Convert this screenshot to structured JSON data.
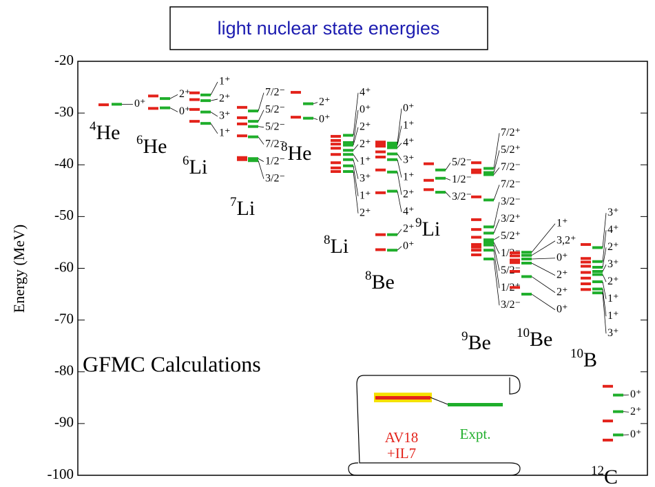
{
  "title": "light nuclear state energies",
  "chart_data": {
    "type": "level",
    "ylabel": "Energy (MeV)",
    "annotation": "GFMC Calculations",
    "ylim": [
      -100,
      -20
    ],
    "yticks": [
      -100,
      -90,
      -80,
      -70,
      -60,
      -50,
      -40,
      -30,
      -20
    ],
    "calc_color": "#e3231b",
    "expt_color": "#1fae2b",
    "legend": {
      "calc_name": [
        "AV18",
        "+IL7"
      ],
      "expt_name": "Expt."
    },
    "nuclei": [
      {
        "mass": "4",
        "symbol": "He",
        "calc": [
          -28.4
        ],
        "expt": [
          -28.3
        ],
        "labels": [
          "0⁺"
        ]
      },
      {
        "mass": "6",
        "symbol": "He",
        "calc": [
          -26.7,
          -29.1
        ],
        "expt": [
          -27.2,
          -29.0
        ],
        "labels": [
          "2⁺",
          "0⁺"
        ]
      },
      {
        "mass": "6",
        "symbol": "Li",
        "calc": [
          -26.1,
          -27.4,
          -29.3,
          -31.6
        ],
        "expt": [
          -26.5,
          -27.6,
          -29.8,
          -32.0
        ],
        "labels": [
          "1⁺",
          "2⁺",
          "3⁺",
          "1⁺"
        ]
      },
      {
        "mass": "7",
        "symbol": "Li",
        "calc": [
          -28.9,
          -30.9,
          -32.1,
          -34.4,
          -38.6,
          -39.0
        ],
        "expt": [
          -29.6,
          -31.6,
          -32.6,
          -34.6,
          -38.8,
          -39.2
        ],
        "labels": [
          "7/2⁻",
          "5/2⁻",
          "5/2⁻",
          "7/2⁻",
          "1/2⁻",
          "3/2⁻"
        ]
      },
      {
        "mass": "8",
        "symbol": "He",
        "calc": [
          -26.0,
          -30.8
        ],
        "expt": [
          -28.2,
          -31.0
        ],
        "labels": [
          "2⁺",
          "0⁺"
        ]
      },
      {
        "mass": "8",
        "symbol": "Li",
        "calc": [
          -34.5,
          -35.3,
          -36.0,
          -36.8,
          -38.0,
          -39.6,
          -40.6,
          -41.3
        ],
        "expt": [
          -34.3,
          -35.7,
          -36.2,
          -37.2,
          -38.0,
          -39.0,
          -40.2,
          -41.3
        ],
        "labels": [
          "4⁺",
          "0⁺",
          "2⁺",
          "2⁺",
          "1⁺",
          "3⁺",
          "1⁺",
          "2⁺"
        ]
      },
      {
        "mass": "8",
        "symbol": "Be",
        "calc": [
          -35.6,
          -36.0,
          -36.4,
          -37.5,
          -38.5,
          -41.0,
          -45.4,
          -53.5,
          -56.4
        ],
        "expt": [
          -35.8,
          -36.2,
          -36.7,
          -37.9,
          -39.0,
          -41.4,
          -45.1,
          -53.5,
          -56.5
        ],
        "labels": [
          "0⁺",
          "1⁺",
          "4⁺",
          "3⁺",
          "1⁺",
          "2⁺",
          "4⁺",
          "2⁺",
          "0⁺"
        ]
      },
      {
        "mass": "9",
        "symbol": "Li",
        "calc": [
          -39.8,
          -43.0,
          -44.8
        ],
        "expt": [
          -41.0,
          -42.6,
          -45.3
        ],
        "labels": [
          "5/2⁻",
          "1/2⁻",
          "3/2⁻"
        ]
      },
      {
        "mass": "9",
        "symbol": "Be",
        "calc": [
          -39.6,
          -41.0,
          -41.5,
          -46.2,
          -50.6,
          -52.5,
          -54.0,
          -55.4,
          -55.9,
          -56.5,
          -57.4
        ],
        "expt": [
          -40.7,
          -41.5,
          -41.9,
          -46.8,
          -52.0,
          -53.2,
          -54.5,
          -55.0,
          -55.5,
          -56.5,
          -58.2
        ],
        "labels": [
          "7/2⁺",
          "5/2⁺",
          "7/2⁻",
          "7/2⁻",
          "3/2⁻",
          "3/2⁺",
          "5/2⁺",
          "1/2⁻",
          "5/2⁻",
          "1/2⁺",
          "3/2⁻"
        ]
      },
      {
        "mass": "10",
        "symbol": "Be",
        "calc": [
          -57.0,
          -57.6,
          -58.4,
          -58.9,
          -60.6,
          -63.7
        ],
        "expt": [
          -56.9,
          -57.5,
          -58.2,
          -59.0,
          -61.6,
          -65.0
        ],
        "labels": [
          "1⁺",
          "3,2⁺",
          "0⁺",
          "2⁺",
          "2⁺",
          "0⁺"
        ]
      },
      {
        "mass": "10",
        "symbol": "B",
        "calc": [
          -55.4,
          -58.1,
          -58.8,
          -59.6,
          -60.8,
          -61.9,
          -63.0,
          -64.1
        ],
        "expt": [
          -56.0,
          -58.7,
          -59.8,
          -60.6,
          -61.2,
          -62.6,
          -64.0,
          -64.75
        ],
        "labels": [
          "3⁺",
          "4⁺",
          "2⁺",
          "3⁺",
          "2⁺",
          "1⁺",
          "1⁺",
          "3⁺"
        ]
      },
      {
        "mass": "12",
        "symbol": "C",
        "calc": [
          -82.8,
          -89.5,
          -93.2
        ],
        "expt": [
          -84.5,
          -87.7,
          -92.2
        ],
        "labels": [
          "0⁺",
          "2⁺",
          "0⁺"
        ]
      }
    ]
  }
}
